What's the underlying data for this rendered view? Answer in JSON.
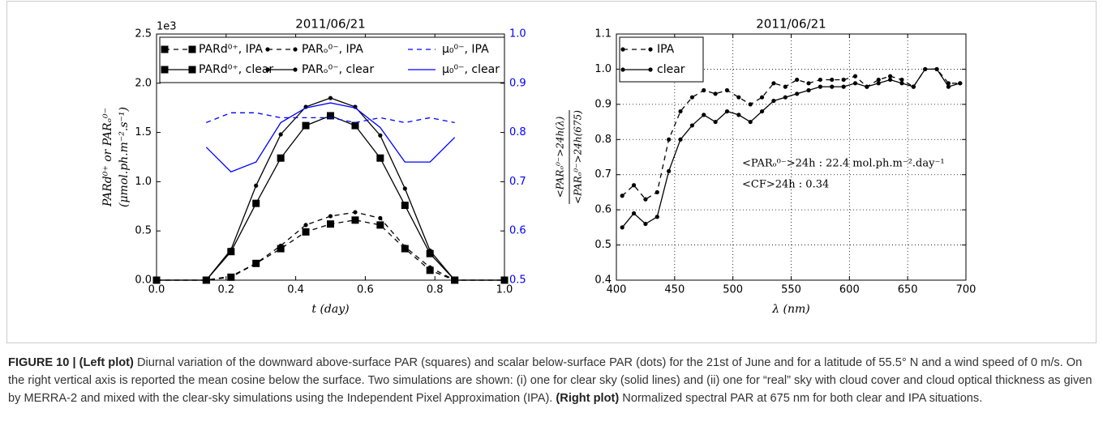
{
  "chart_data": [
    {
      "type": "line",
      "title": "2011/06/21",
      "multiplier_label": "1e3",
      "xlabel": "t (day)",
      "ylabel": [
        "PARd⁰⁺ or PARₒ⁰⁻",
        "(μmol.ph.m⁻².s⁻¹)"
      ],
      "x": [
        0,
        0.143,
        0.214,
        0.286,
        0.357,
        0.429,
        0.5,
        0.571,
        0.643,
        0.714,
        0.786,
        0.857,
        1.0
      ],
      "xlim": [
        0,
        1
      ],
      "xticks": [
        {
          "value": 0,
          "label": "0.0"
        },
        0.2,
        0.4,
        0.6,
        0.8,
        {
          "value": 1,
          "label": "1.0"
        }
      ],
      "ylim": [
        0,
        2.5
      ],
      "yticks": [
        {
          "value": 0,
          "label": "0.0"
        },
        0.5,
        {
          "value": 1,
          "label": "1.0"
        },
        1.5,
        {
          "value": 2,
          "label": "2.0"
        },
        2.5
      ],
      "y2lim": [
        0.5,
        1.0
      ],
      "y2ticks": [
        0.5,
        0.6,
        0.7,
        0.8,
        0.9,
        {
          "value": 1,
          "label": "1.0"
        }
      ],
      "y2_color": "#0000ff",
      "grid": false,
      "legend": "upper left",
      "legend_rows": 2,
      "series": [
        {
          "name": "PARd⁰⁺, IPA",
          "color": "#000000",
          "dash": true,
          "marker": "square",
          "values": [
            0,
            0,
            0.03,
            0.17,
            0.32,
            0.49,
            0.57,
            0.61,
            0.56,
            0.32,
            0.1,
            0,
            0
          ]
        },
        {
          "name": "PARd⁰⁺, clear",
          "color": "#000000",
          "dash": false,
          "marker": "square",
          "values": [
            0,
            0,
            0.29,
            0.78,
            1.24,
            1.57,
            1.67,
            1.57,
            1.24,
            0.76,
            0.27,
            0,
            0
          ]
        },
        {
          "name": "PARₒ⁰⁻, IPA",
          "color": "#000000",
          "dash": true,
          "marker": "dot",
          "values": [
            0,
            0,
            0.04,
            0.17,
            0.35,
            0.56,
            0.65,
            0.69,
            0.63,
            0.34,
            0.13,
            0,
            0
          ]
        },
        {
          "name": "PARₒ⁰⁻, clear",
          "color": "#000000",
          "dash": false,
          "marker": "dot",
          "values": [
            0,
            0,
            0.31,
            0.96,
            1.48,
            1.76,
            1.85,
            1.76,
            1.47,
            0.93,
            0.3,
            0,
            0
          ]
        },
        {
          "name": "μ₀⁰⁻, IPA",
          "color": "#0000ff",
          "dash": true,
          "marker": "none",
          "axis": "y2",
          "values": [
            null,
            0.82,
            0.84,
            0.84,
            0.83,
            0.83,
            0.83,
            0.82,
            0.83,
            0.82,
            0.83,
            0.82,
            null
          ]
        },
        {
          "name": "μ₀⁰⁻, clear",
          "color": "#0000ff",
          "dash": false,
          "marker": "none",
          "axis": "y2",
          "values": [
            null,
            0.77,
            0.72,
            0.74,
            0.82,
            0.85,
            0.86,
            0.85,
            0.81,
            0.74,
            0.74,
            0.79,
            null
          ]
        }
      ]
    },
    {
      "type": "line",
      "title": "2011/06/21",
      "xlabel": "λ (nm)",
      "ylabel_numerator": "<PARₒ⁰⁻>24h(λ)",
      "ylabel_denominator": "<PARₒ⁰⁻>24h(675)",
      "x": [
        405,
        415,
        425,
        435,
        445,
        455,
        465,
        475,
        485,
        495,
        505,
        515,
        525,
        535,
        545,
        555,
        565,
        575,
        585,
        595,
        605,
        615,
        625,
        635,
        645,
        655,
        665,
        675,
        685,
        695
      ],
      "xlim": [
        400,
        700
      ],
      "xticks": [
        400,
        450,
        500,
        550,
        600,
        650,
        700
      ],
      "ylim": [
        0.4,
        1.1
      ],
      "yticks": [
        0.4,
        0.5,
        0.6,
        0.7,
        0.8,
        0.9,
        {
          "value": 1,
          "label": "1.0"
        },
        1.1
      ],
      "grid": true,
      "legend": "upper left",
      "legend_rows": 2,
      "annotations": [
        "<PARₒ⁰⁻>24h : 22.4 mol.ph.m⁻².day⁻¹",
        "<CF>24h : 0.34"
      ],
      "series": [
        {
          "name": "IPA",
          "color": "#000000",
          "dash": true,
          "marker": "dot",
          "values": [
            0.64,
            0.67,
            0.63,
            0.65,
            0.8,
            0.88,
            0.92,
            0.94,
            0.93,
            0.94,
            0.92,
            0.9,
            0.92,
            0.96,
            0.95,
            0.97,
            0.96,
            0.97,
            0.97,
            0.97,
            0.98,
            0.95,
            0.97,
            0.98,
            0.97,
            0.95,
            1.0,
            1.0,
            0.96,
            0.96
          ]
        },
        {
          "name": "clear",
          "color": "#000000",
          "dash": false,
          "marker": "dot",
          "values": [
            0.55,
            0.59,
            0.56,
            0.58,
            0.71,
            0.8,
            0.84,
            0.87,
            0.85,
            0.88,
            0.87,
            0.85,
            0.88,
            0.91,
            0.92,
            0.93,
            0.94,
            0.95,
            0.95,
            0.95,
            0.96,
            0.95,
            0.96,
            0.97,
            0.96,
            0.95,
            1.0,
            1.0,
            0.95,
            0.96
          ]
        }
      ]
    }
  ],
  "caption": {
    "label": "FIGURE 10 |",
    "left_heading": "(Left plot)",
    "left_text": "Diurnal variation of the downward above-surface PAR (squares) and scalar below-surface PAR (dots) for the 21st of June and for a latitude of 55.5° N and a wind speed of 0 m/s. On the right vertical axis is reported the mean cosine below the surface. Two simulations are shown: (i) one for clear sky (solid lines) and (ii) one for “real” sky with cloud cover and cloud optical thickness as given by MERRA-2 and mixed with the clear-sky simulations using the Independent Pixel Approximation (IPA).",
    "right_heading": "(Right plot)",
    "right_text": "Normalized spectral PAR at 675 nm for both clear and IPA situations."
  }
}
